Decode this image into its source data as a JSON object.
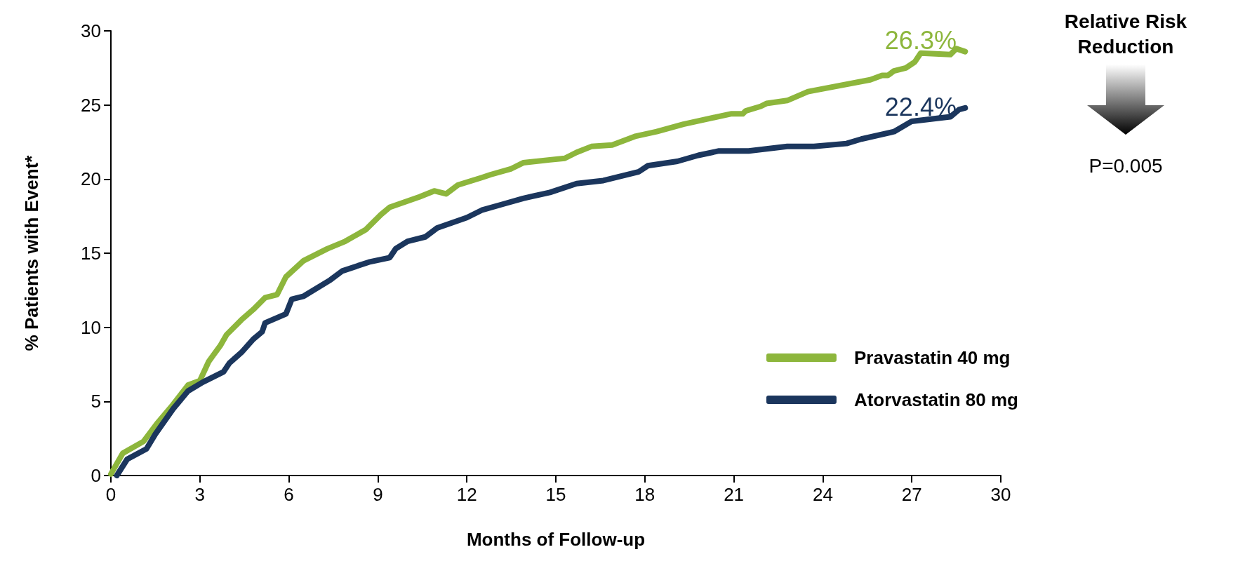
{
  "chart_data": {
    "type": "line",
    "xlabel": "Months of Follow-up",
    "ylabel": "% Patients with Event*",
    "xlim": [
      0,
      30
    ],
    "xticks": [
      0,
      3,
      6,
      9,
      12,
      15,
      18,
      21,
      24,
      27,
      30
    ],
    "ylim": [
      0,
      30
    ],
    "yticks": [
      0,
      5,
      10,
      15,
      20,
      25,
      30
    ],
    "grid": false,
    "legend": "bottom right",
    "marker": "none",
    "line_style": "solid",
    "series": [
      {
        "name": "Pravastatin 40 mg",
        "color": "#8db63c",
        "x": [
          0,
          0.4,
          1.1,
          1.55,
          2.1,
          2.6,
          3.0,
          3.3,
          3.7,
          3.9,
          4.4,
          4.8,
          5.2,
          5.6,
          5.9,
          6.5,
          7.3,
          7.9,
          8.6,
          9.1,
          9.4,
          10.4,
          10.9,
          11.3,
          11.7,
          12.5,
          12.8,
          13.5,
          13.9,
          14.8,
          15.3,
          15.7,
          16.2,
          16.9,
          17.7,
          18.4,
          19.3,
          20.9,
          21.3,
          21.4,
          21.9,
          22.1,
          22.8,
          23.5,
          25.6,
          26.0,
          26.2,
          26.4,
          26.8,
          27.1,
          27.3,
          28.3,
          28.5,
          28.8
        ],
        "values": [
          0.1,
          1.5,
          2.3,
          3.5,
          4.8,
          6.1,
          6.4,
          7.7,
          8.8,
          9.5,
          10.5,
          11.2,
          12.0,
          12.2,
          13.4,
          14.5,
          15.3,
          15.8,
          16.6,
          17.6,
          18.1,
          18.8,
          19.2,
          19.0,
          19.6,
          20.1,
          20.3,
          20.7,
          21.1,
          21.3,
          21.4,
          21.8,
          22.2,
          22.3,
          22.9,
          23.2,
          23.7,
          24.4,
          24.4,
          24.6,
          24.9,
          25.1,
          25.3,
          25.9,
          26.7,
          27.0,
          27.0,
          27.3,
          27.5,
          27.9,
          28.5,
          28.4,
          28.8,
          28.6
        ]
      },
      {
        "name": "Atorvastatin 80 mg",
        "color": "#1b365d",
        "x": [
          0.2,
          0.55,
          1.2,
          1.5,
          2.1,
          2.6,
          3.1,
          3.8,
          4.0,
          4.4,
          4.8,
          5.1,
          5.2,
          5.9,
          6.1,
          6.5,
          7.4,
          7.8,
          8.7,
          9.4,
          9.6,
          10.0,
          10.6,
          11.0,
          12.0,
          12.5,
          13.2,
          13.9,
          14.8,
          15.7,
          16.6,
          17.2,
          17.8,
          18.1,
          19.1,
          19.8,
          20.5,
          21.5,
          22.8,
          23.7,
          24.8,
          25.3,
          26.4,
          27.0,
          28.3,
          28.6,
          28.8
        ],
        "values": [
          0,
          1.1,
          1.8,
          2.8,
          4.5,
          5.7,
          6.3,
          7.0,
          7.6,
          8.3,
          9.2,
          9.7,
          10.3,
          10.9,
          11.9,
          12.1,
          13.2,
          13.8,
          14.4,
          14.7,
          15.3,
          15.8,
          16.1,
          16.7,
          17.4,
          17.9,
          18.3,
          18.7,
          19.1,
          19.7,
          19.9,
          20.2,
          20.5,
          20.9,
          21.2,
          21.6,
          21.9,
          21.9,
          22.2,
          22.2,
          22.4,
          22.7,
          23.2,
          23.9,
          24.2,
          24.7,
          24.8
        ]
      }
    ],
    "annotations": [
      {
        "text": "26.3%",
        "x": 27.3,
        "y": 28.5
      },
      {
        "text": "22.4%",
        "x": 27.3,
        "y": 24.0
      },
      "Relative Risk Reduction",
      "P=0.005"
    ]
  }
}
